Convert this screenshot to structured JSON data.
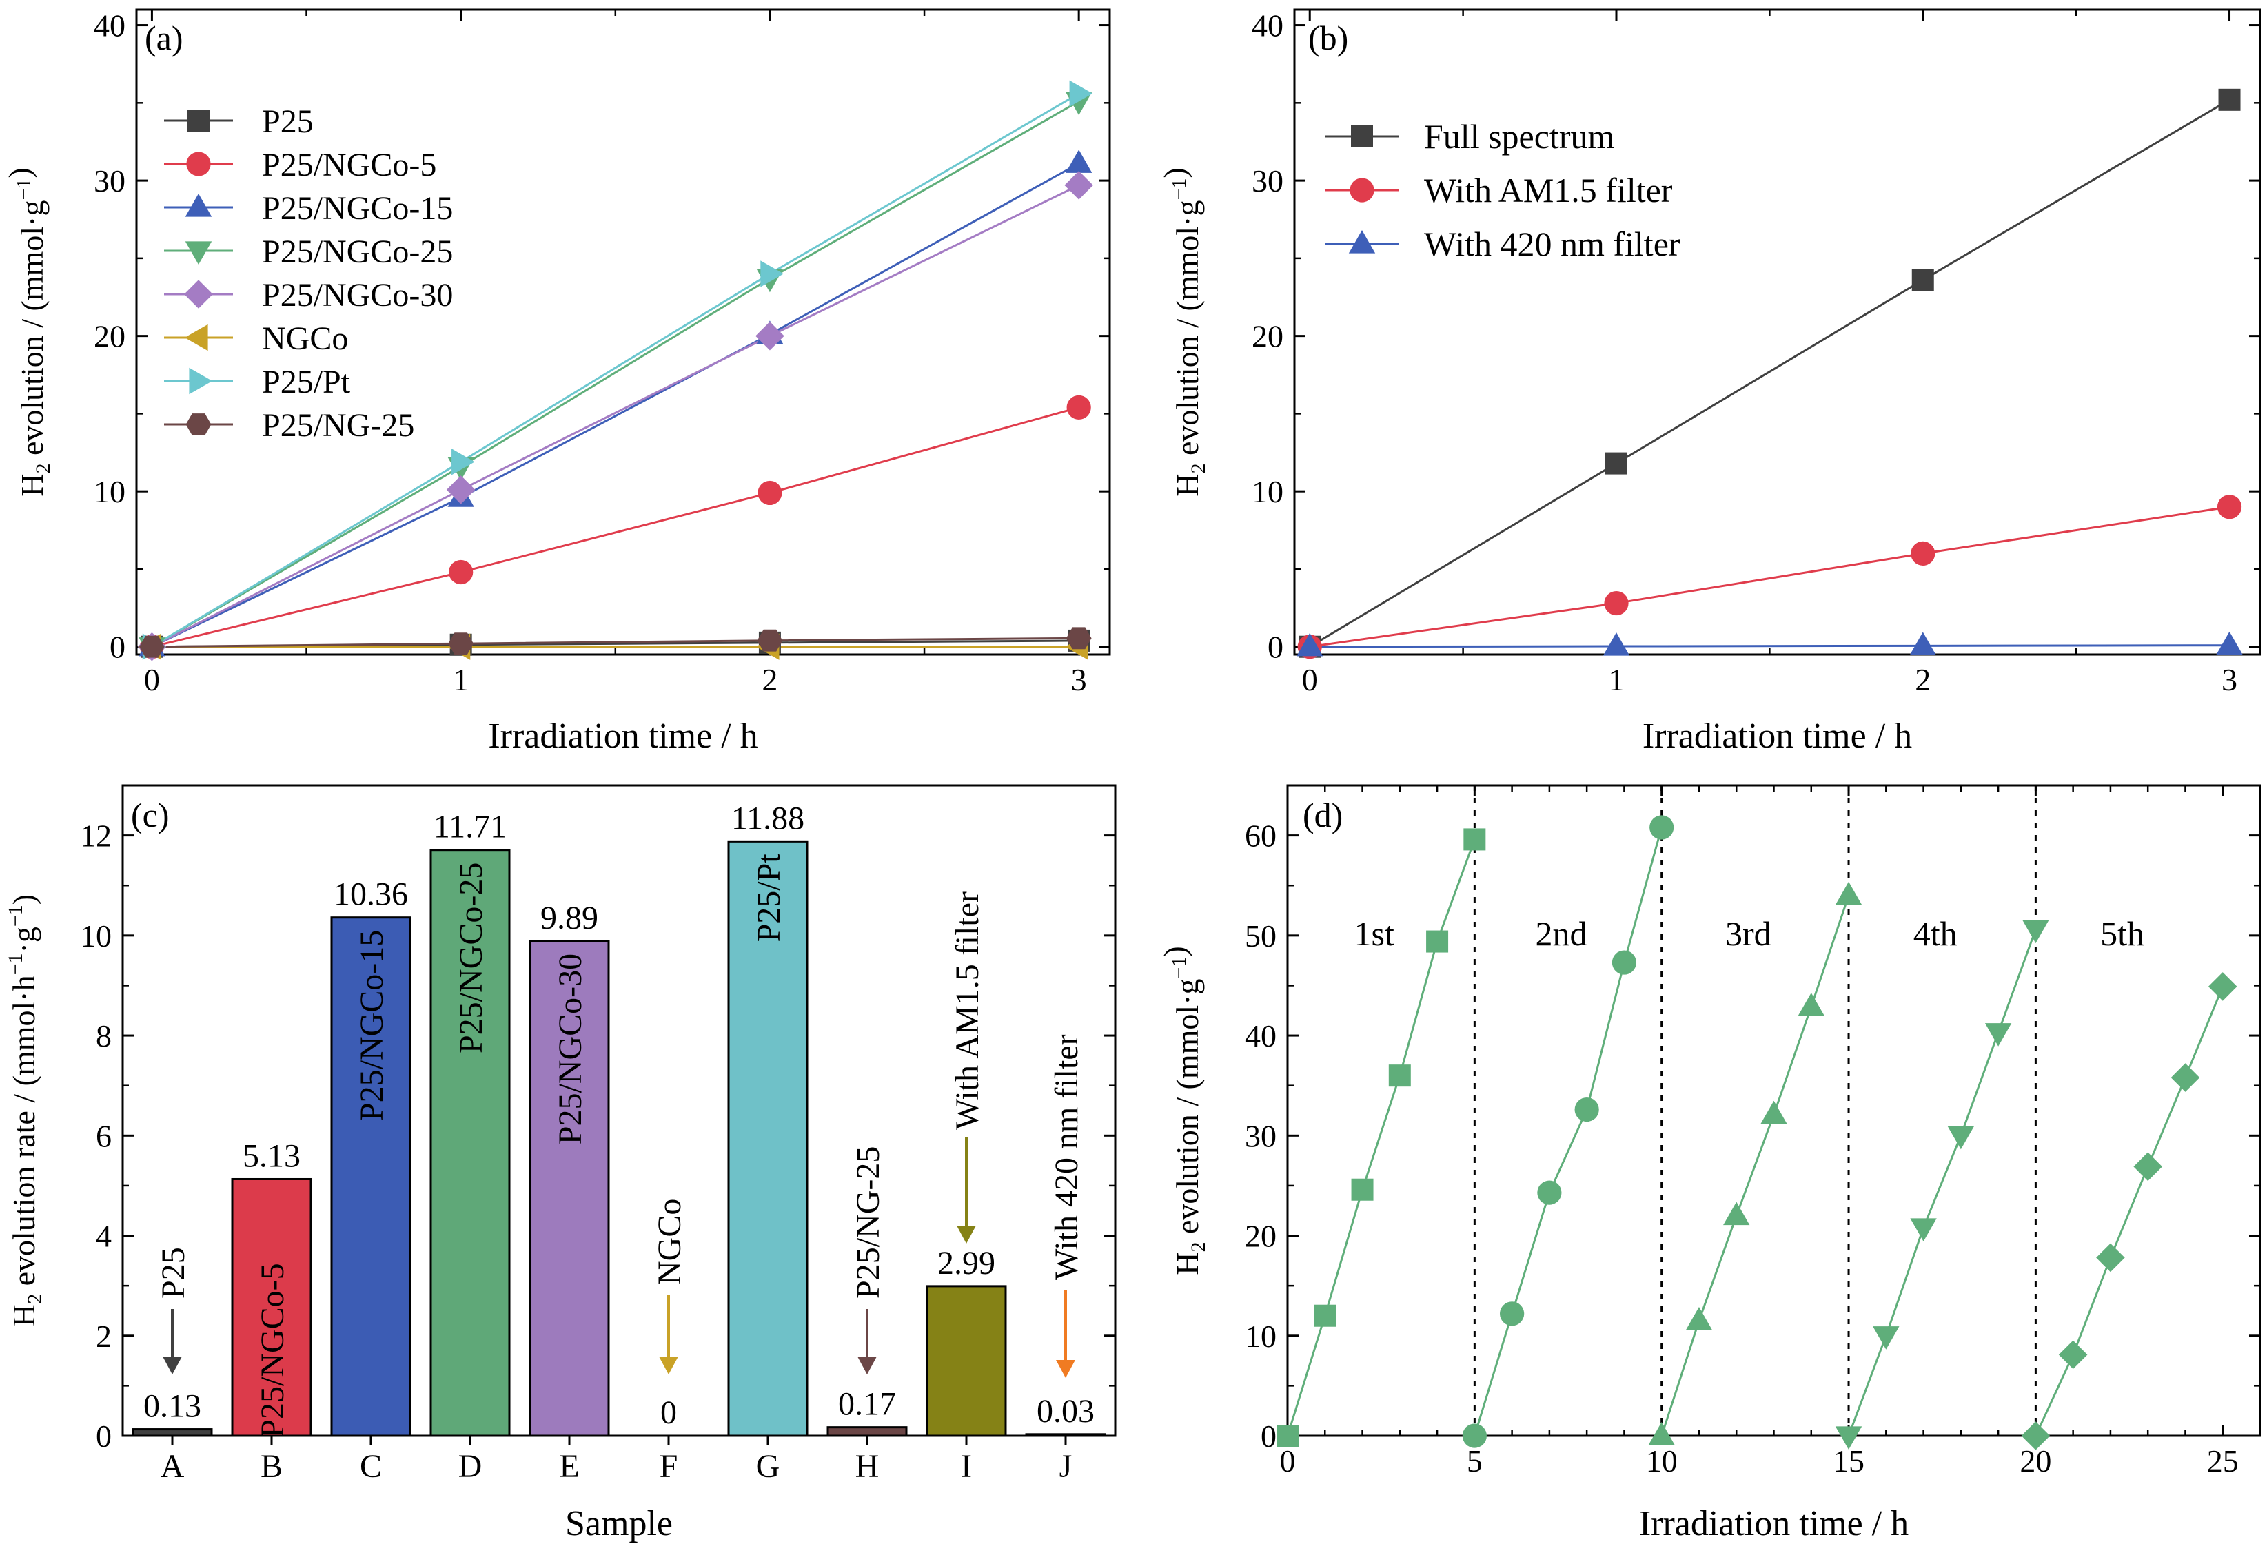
{
  "chart_data": [
    {
      "panel": "(a)",
      "type": "line",
      "xlabel": "Irradiation time / h",
      "ylabel": "evolution / (mmol·g",
      "xlim": [
        -0.05,
        3.1
      ],
      "ylim": [
        -0.5,
        41
      ],
      "xticks": [
        0,
        1,
        2,
        3
      ],
      "yticks": [
        0,
        10,
        20,
        30,
        40
      ],
      "x": [
        0,
        1,
        2,
        3
      ],
      "legend_position": "top-left",
      "series": [
        {
          "name": "P25",
          "color": "#404040",
          "marker": "square",
          "values": [
            0,
            0.13,
            0.26,
            0.39
          ]
        },
        {
          "name": "P25/NGCo-5",
          "color": "#e03c4c",
          "marker": "circle",
          "values": [
            0,
            4.8,
            9.9,
            15.4
          ]
        },
        {
          "name": "P25/NGCo-15",
          "color": "#3e5fb8",
          "marker": "triangle-up",
          "values": [
            0,
            9.6,
            20.1,
            31.1
          ]
        },
        {
          "name": "P25/NGCo-25",
          "color": "#5fae7a",
          "marker": "triangle-down",
          "values": [
            0,
            11.6,
            23.7,
            35.1
          ]
        },
        {
          "name": "P25/NGCo-30",
          "color": "#a47cc4",
          "marker": "diamond",
          "values": [
            0,
            10.1,
            20.0,
            29.7
          ]
        },
        {
          "name": "NGCo",
          "color": "#c9a227",
          "marker": "triangle-left",
          "values": [
            0,
            0.0,
            0.0,
            0.0
          ]
        },
        {
          "name": "P25/Pt",
          "color": "#6cc7cf",
          "marker": "triangle-right",
          "values": [
            0,
            11.9,
            24.0,
            35.6
          ]
        },
        {
          "name": "P25/NG-25",
          "color": "#6b4646",
          "marker": "hexagon",
          "values": [
            0,
            0.2,
            0.4,
            0.55
          ]
        }
      ]
    },
    {
      "panel": "(b)",
      "type": "line",
      "xlabel": "Irradiation time / h",
      "ylabel": "evolution / (mmol·g",
      "xlim": [
        -0.05,
        3.1
      ],
      "ylim": [
        -0.5,
        41
      ],
      "xticks": [
        0,
        1,
        2,
        3
      ],
      "yticks": [
        0,
        10,
        20,
        30,
        40
      ],
      "x": [
        0,
        1,
        2,
        3
      ],
      "legend_position": "top-left",
      "series": [
        {
          "name": "Full spectrum",
          "color": "#404040",
          "marker": "square",
          "values": [
            0,
            11.8,
            23.6,
            35.2
          ]
        },
        {
          "name": "With AM1.5 filter",
          "color": "#e03c4c",
          "marker": "circle",
          "values": [
            0,
            2.8,
            6.0,
            9.0
          ]
        },
        {
          "name": "With 420 nm filter",
          "color": "#3e5fb8",
          "marker": "triangle-up",
          "values": [
            0,
            0.03,
            0.06,
            0.09
          ]
        }
      ]
    },
    {
      "panel": "(c)",
      "type": "bar",
      "xlabel": "Sample",
      "ylabel": "evolution rate / (mmol·h",
      "ylim": [
        0,
        13
      ],
      "yticks": [
        0,
        2,
        4,
        6,
        8,
        10,
        12
      ],
      "categories": [
        "A",
        "B",
        "C",
        "D",
        "E",
        "F",
        "G",
        "H",
        "I",
        "J"
      ],
      "values": [
        0.13,
        5.13,
        10.36,
        11.71,
        9.89,
        0,
        11.88,
        0.17,
        2.99,
        0.03
      ],
      "value_labels": [
        "0.13",
        "5.13",
        "10.36",
        "11.71",
        "9.89",
        "0",
        "11.88",
        "0.17",
        "2.99",
        "0.03"
      ],
      "bar_labels": [
        "P25",
        "P25/NGCo-5",
        "P25/NGCo-15",
        "P25/NGCo-25",
        "P25/NGCo-30",
        "NGCo",
        "P25/Pt",
        "P25/NG-25",
        "With AM1.5 filter",
        "With 420 nm filter"
      ],
      "colors": [
        "#404040",
        "#dc3b4b",
        "#3c5cb4",
        "#5fa878",
        "#9d7bbd",
        "#c9a227",
        "#6fc1c8",
        "#6b4646",
        "#858216",
        "#f07b22"
      ]
    },
    {
      "panel": "(d)",
      "type": "line",
      "xlabel": "Irradiation time / h",
      "ylabel": "evolution / (mmol·g",
      "xlim": [
        0,
        26
      ],
      "ylim": [
        0,
        65
      ],
      "xticks": [
        0,
        5,
        10,
        15,
        20,
        25
      ],
      "yticks": [
        0,
        10,
        20,
        30,
        40,
        50,
        60
      ],
      "color": "#5fae7a",
      "cycle_dividers": [
        5,
        10,
        15,
        20
      ],
      "series": [
        {
          "name": "1st",
          "marker": "square",
          "x": [
            0,
            1,
            2,
            3,
            4,
            5
          ],
          "values": [
            0,
            12.0,
            24.6,
            36.0,
            49.4,
            59.6
          ]
        },
        {
          "name": "2nd",
          "marker": "circle",
          "x": [
            5,
            6,
            7,
            8,
            9,
            10
          ],
          "values": [
            0,
            12.2,
            24.3,
            32.6,
            47.3,
            60.8
          ]
        },
        {
          "name": "3rd",
          "marker": "triangle-up",
          "x": [
            10,
            11,
            12,
            13,
            14,
            15
          ],
          "values": [
            0,
            11.5,
            22.0,
            32.1,
            42.9,
            54.0
          ]
        },
        {
          "name": "4th",
          "marker": "triangle-down",
          "x": [
            15,
            16,
            17,
            18,
            19,
            20
          ],
          "values": [
            0,
            10.0,
            20.8,
            30.0,
            40.3,
            50.6
          ]
        },
        {
          "name": "5th",
          "marker": "diamond",
          "x": [
            20,
            21,
            22,
            23,
            24,
            25
          ],
          "values": [
            0,
            8.1,
            17.8,
            26.9,
            35.8,
            44.9
          ]
        }
      ]
    }
  ]
}
